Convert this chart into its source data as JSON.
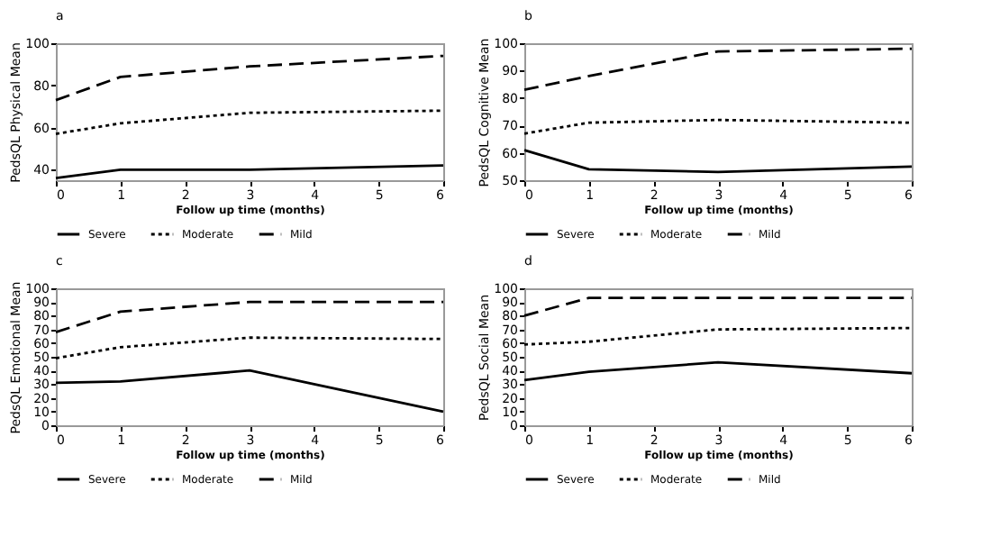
{
  "chart_data": [
    {
      "type": "line",
      "title": "a",
      "xlabel": "Follow up time (months)",
      "ylabel": "PedsQL Physical Mean",
      "x": [
        0,
        1,
        3,
        6
      ],
      "xlim": [
        0,
        6
      ],
      "xticks": [
        0,
        1,
        2,
        3,
        4,
        5,
        6
      ],
      "ylim": [
        35,
        100
      ],
      "yticks": [
        40,
        60,
        80,
        100
      ],
      "grid": false,
      "legend": "bottom",
      "marker": "none",
      "series": [
        {
          "name": "Severe",
          "color": "#000000",
          "line_style": "solid",
          "values": [
            36,
            40,
            40,
            42
          ]
        },
        {
          "name": "Moderate",
          "color": "#000000",
          "line_style": "dotted",
          "values": [
            57,
            62,
            67,
            68
          ]
        },
        {
          "name": "Mild",
          "color": "#000000",
          "line_style": "dashed",
          "values": [
            73,
            84,
            89,
            94
          ]
        }
      ]
    },
    {
      "type": "line",
      "title": "b",
      "xlabel": "Follow up time (months)",
      "ylabel": "PedsQL Cognitive Mean",
      "x": [
        0,
        1,
        3,
        6
      ],
      "xlim": [
        0,
        6
      ],
      "xticks": [
        0,
        1,
        2,
        3,
        4,
        5,
        6
      ],
      "ylim": [
        50,
        100
      ],
      "yticks": [
        50,
        60,
        70,
        80,
        90,
        100
      ],
      "grid": false,
      "legend": "bottom",
      "marker": "none",
      "series": [
        {
          "name": "Severe",
          "color": "#000000",
          "line_style": "solid",
          "values": [
            61,
            54,
            53,
            55
          ]
        },
        {
          "name": "Moderate",
          "color": "#000000",
          "line_style": "dotted",
          "values": [
            67,
            71,
            72,
            71
          ]
        },
        {
          "name": "Mild",
          "color": "#000000",
          "line_style": "dashed",
          "values": [
            83,
            88,
            97,
            98
          ]
        }
      ]
    },
    {
      "type": "line",
      "title": "c",
      "xlabel": "Follow up time (months)",
      "ylabel": "PedsQL Emotional Mean",
      "x": [
        0,
        1,
        3,
        6
      ],
      "xlim": [
        0,
        6
      ],
      "xticks": [
        0,
        1,
        2,
        3,
        4,
        5,
        6
      ],
      "ylim": [
        0,
        100
      ],
      "yticks": [
        0,
        10,
        20,
        30,
        40,
        50,
        60,
        70,
        80,
        90,
        100
      ],
      "grid": false,
      "legend": "bottom",
      "marker": "none",
      "series": [
        {
          "name": "Severe",
          "color": "#000000",
          "line_style": "solid",
          "values": [
            31,
            32,
            40,
            10
          ]
        },
        {
          "name": "Moderate",
          "color": "#000000",
          "line_style": "dotted",
          "values": [
            49,
            57,
            64,
            63
          ]
        },
        {
          "name": "Mild",
          "color": "#000000",
          "line_style": "dashed",
          "values": [
            68,
            83,
            90,
            90
          ]
        }
      ]
    },
    {
      "type": "line",
      "title": "d",
      "xlabel": "Follow up time (months)",
      "ylabel": "PedsQL Social Mean",
      "x": [
        0,
        1,
        3,
        6
      ],
      "xlim": [
        0,
        6
      ],
      "xticks": [
        0,
        1,
        2,
        3,
        4,
        5,
        6
      ],
      "ylim": [
        0,
        100
      ],
      "yticks": [
        0,
        10,
        20,
        30,
        40,
        50,
        60,
        70,
        80,
        90,
        100
      ],
      "grid": false,
      "legend": "bottom",
      "marker": "none",
      "series": [
        {
          "name": "Severe",
          "color": "#000000",
          "line_style": "solid",
          "values": [
            33,
            39,
            46,
            38
          ]
        },
        {
          "name": "Moderate",
          "color": "#000000",
          "line_style": "dotted",
          "values": [
            59,
            61,
            70,
            71
          ]
        },
        {
          "name": "Mild",
          "color": "#000000",
          "line_style": "dashed",
          "values": [
            80,
            93,
            93,
            93
          ]
        }
      ]
    }
  ]
}
